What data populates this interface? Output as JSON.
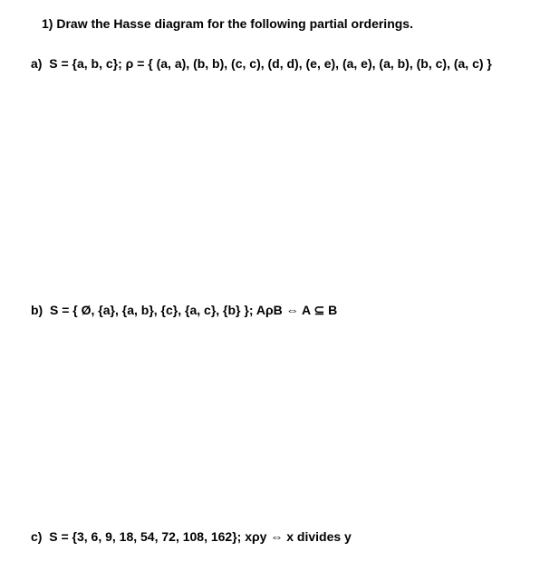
{
  "question": {
    "number": "1)",
    "title": "Draw the Hasse diagram for the following partial orderings."
  },
  "parts": {
    "a": {
      "label": "a)",
      "text": "S = {a, b, c}; ρ = { (a, a), (b, b), (c, c), (d, d), (e, e), (a, e), (a, b), (b, c), (a, c) }"
    },
    "b": {
      "label": "b)",
      "text": "S = { Ø, {a}, {a, b}, {c}, {a, c}, {b} }; AρB ⇔ A ⊆ B"
    },
    "c": {
      "label": "c)",
      "text": "S = {3, 6, 9, 18, 54, 72, 108, 162}; xρy ⇔ x divides y"
    }
  },
  "styling": {
    "background_color": "#ffffff",
    "text_color": "#000000",
    "font_family": "Arial",
    "title_fontsize": 14,
    "part_fontsize": 14,
    "font_weight": "bold"
  }
}
